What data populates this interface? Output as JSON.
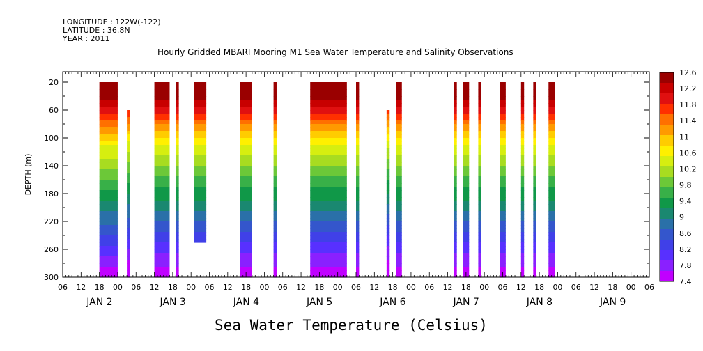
{
  "header": {
    "longitude": "LONGITUDE : 122W(-122)",
    "latitude": "LATITUDE : 36.8N",
    "year": "YEAR : 2011"
  },
  "chart_data": {
    "type": "heatmap",
    "title": "Hourly Gridded MBARI Mooring M1 Sea Water Temperature and Salinity Observations",
    "ylabel": "DEPTH (m)",
    "variable_label": "Sea Water Temperature (Celsius)",
    "y_ticks": [
      20,
      60,
      100,
      140,
      180,
      220,
      260,
      300
    ],
    "ylim": [
      300,
      5
    ],
    "x_hour_ticks": [
      "06",
      "12",
      "18",
      "00",
      "06",
      "12",
      "18",
      "00",
      "06",
      "12",
      "18",
      "00",
      "06",
      "12",
      "18",
      "00",
      "06",
      "12",
      "18",
      "00",
      "06",
      "12",
      "18",
      "00",
      "06",
      "12",
      "18",
      "00",
      "06",
      "12",
      "18",
      "00",
      "06"
    ],
    "x_day_labels": [
      "JAN  2",
      "JAN  3",
      "JAN  4",
      "JAN  5",
      "JAN  6",
      "JAN  7",
      "JAN  8",
      "JAN  9"
    ],
    "colorbar_labels": [
      "12.6",
      "12.2",
      "11.8",
      "11.4",
      "11",
      "10.6",
      "10.2",
      "9.8",
      "9.4",
      "9",
      "8.6",
      "8.2",
      "7.8",
      "7.4"
    ],
    "colorbar_colors": [
      "#9a0000",
      "#c80000",
      "#e01010",
      "#ff3000",
      "#ff7000",
      "#ff9a00",
      "#ffcc00",
      "#fff000",
      "#d6ee10",
      "#a8dc20",
      "#6cc838",
      "#38b048",
      "#109848",
      "#1a8870",
      "#2a70a8",
      "#3456cc",
      "#4040e8",
      "#5830ff",
      "#8a20ff",
      "#c000ff"
    ],
    "profiles": [
      {
        "start": "JAN 1 18:00",
        "end": "JAN 2 00:00",
        "depth_top": 20,
        "depth_bottom": 300,
        "surface_c": 12.6
      },
      {
        "start": "JAN 2 03:00",
        "end": "JAN 2 04:00",
        "depth_top": 60,
        "depth_bottom": 300,
        "surface_c": 12.0
      },
      {
        "start": "JAN 2 12:00",
        "end": "JAN 2 17:00",
        "depth_top": 20,
        "depth_bottom": 300,
        "surface_c": 12.4
      },
      {
        "start": "JAN 2 19:00",
        "end": "JAN 2 20:00",
        "depth_top": 20,
        "depth_bottom": 300,
        "surface_c": 12.4
      },
      {
        "start": "JAN 3 01:00",
        "end": "JAN 3 05:00",
        "depth_top": 20,
        "depth_bottom": 250,
        "surface_c": 12.4
      },
      {
        "start": "JAN 3 16:00",
        "end": "JAN 3 20:00",
        "depth_top": 20,
        "depth_bottom": 300,
        "surface_c": 12.4
      },
      {
        "start": "JAN 4 03:00",
        "end": "JAN 4 04:00",
        "depth_top": 20,
        "depth_bottom": 300,
        "surface_c": 12.4
      },
      {
        "start": "JAN 4 15:00",
        "end": "JAN 5 03:00",
        "depth_top": 20,
        "depth_bottom": 300,
        "surface_c": 12.4
      },
      {
        "start": "JAN 5 06:00",
        "end": "JAN 5 07:00",
        "depth_top": 20,
        "depth_bottom": 300,
        "surface_c": 12.4
      },
      {
        "start": "JAN 5 16:00",
        "end": "JAN 5 17:00",
        "depth_top": 60,
        "depth_bottom": 300,
        "surface_c": 11.8
      },
      {
        "start": "JAN 5 19:00",
        "end": "JAN 5 21:00",
        "depth_top": 20,
        "depth_bottom": 300,
        "surface_c": 12.4
      },
      {
        "start": "JAN 6 14:00",
        "end": "JAN 6 15:00",
        "depth_top": 20,
        "depth_bottom": 300,
        "surface_c": 12.4
      },
      {
        "start": "JAN 6 17:00",
        "end": "JAN 6 19:00",
        "depth_top": 20,
        "depth_bottom": 300,
        "surface_c": 12.4
      },
      {
        "start": "JAN 6 22:00",
        "end": "JAN 6 23:00",
        "depth_top": 20,
        "depth_bottom": 300,
        "surface_c": 12.4
      },
      {
        "start": "JAN 7 05:00",
        "end": "JAN 7 07:00",
        "depth_top": 20,
        "depth_bottom": 300,
        "surface_c": 12.4
      },
      {
        "start": "JAN 7 12:00",
        "end": "JAN 7 13:00",
        "depth_top": 20,
        "depth_bottom": 300,
        "surface_c": 12.4
      },
      {
        "start": "JAN 7 16:00",
        "end": "JAN 7 17:00",
        "depth_top": 20,
        "depth_bottom": 300,
        "surface_c": 12.4
      },
      {
        "start": "JAN 7 21:00",
        "end": "JAN 7 23:00",
        "depth_top": 20,
        "depth_bottom": 300,
        "surface_c": 12.4
      }
    ]
  }
}
